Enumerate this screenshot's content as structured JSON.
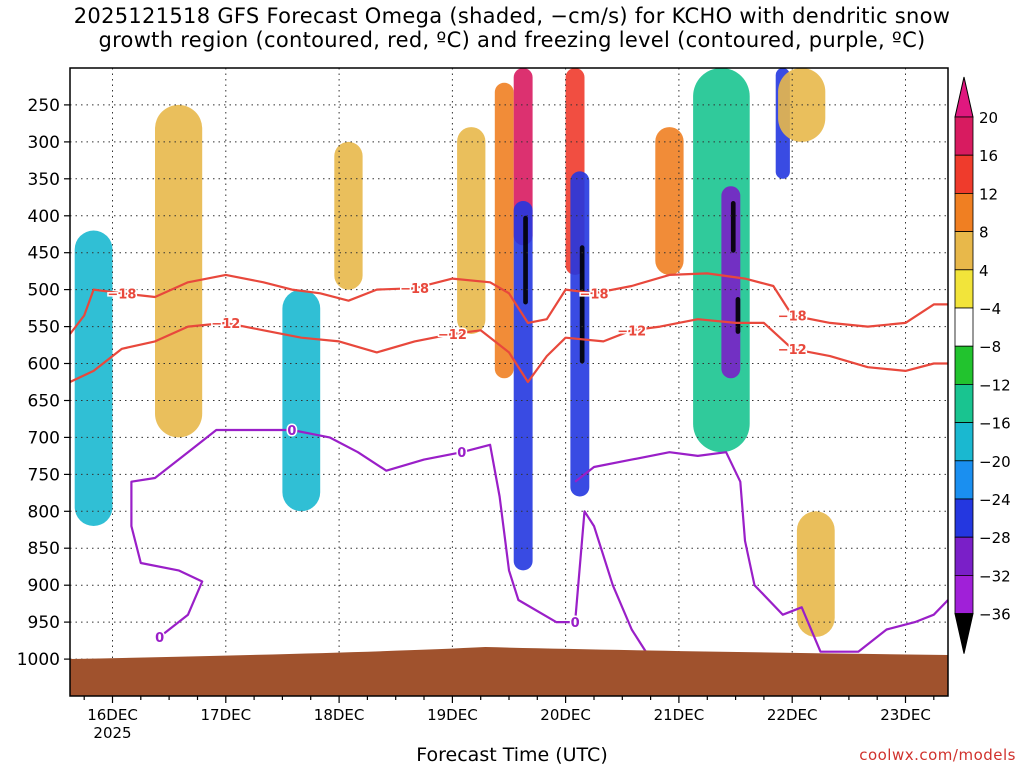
{
  "title_line1": "2025121518 GFS Forecast Omega (shaded, −cm/s) for KCHO with dendritic snow",
  "title_line2": "growth region (contoured, red, ºC) and freezing level (contoured, purple, ºC)",
  "xlabel": "Forecast Time (UTC)",
  "credit": "coolwx.com/models",
  "chart_data": {
    "type": "heatmap",
    "y_axis": {
      "label": "",
      "ticks": [
        250,
        300,
        350,
        400,
        450,
        500,
        550,
        600,
        650,
        700,
        750,
        800,
        850,
        900,
        950,
        1000
      ],
      "range": [
        1050,
        200
      ],
      "unit": "hPa"
    },
    "x_axis": {
      "label": "Forecast Time (UTC)",
      "range_hours": [
        -3,
        183
      ],
      "ticks": [
        {
          "hour": 6,
          "label": "16DEC",
          "sublabel": "2025"
        },
        {
          "hour": 30,
          "label": "17DEC",
          "sublabel": ""
        },
        {
          "hour": 54,
          "label": "18DEC",
          "sublabel": ""
        },
        {
          "hour": 78,
          "label": "19DEC",
          "sublabel": ""
        },
        {
          "hour": 102,
          "label": "20DEC",
          "sublabel": ""
        },
        {
          "hour": 126,
          "label": "21DEC",
          "sublabel": ""
        },
        {
          "hour": 150,
          "label": "22DEC",
          "sublabel": ""
        },
        {
          "hour": 174,
          "label": "23DEC",
          "sublabel": ""
        }
      ]
    },
    "grid": true,
    "colorbar": {
      "placement": "right",
      "levels": [
        {
          "label": "20",
          "color": "#d81b60"
        },
        {
          "label": "16",
          "color": "#ef3b2c"
        },
        {
          "label": "12",
          "color": "#f07f22"
        },
        {
          "label": "8",
          "color": "#e8b84a"
        },
        {
          "label": "4",
          "color": "#f2e43a"
        },
        {
          "label": "−4",
          "color": "#ffffff"
        },
        {
          "label": "−8",
          "color": "#22c32e"
        },
        {
          "label": "−12",
          "color": "#19c490"
        },
        {
          "label": "−16",
          "color": "#1ab8d0"
        },
        {
          "label": "−20",
          "color": "#1a8ff0"
        },
        {
          "label": "−24",
          "color": "#2437e0"
        },
        {
          "label": "−28",
          "color": "#7a1fc8"
        },
        {
          "label": "−32",
          "color": "#a020d8"
        },
        {
          "label": "−36",
          "color": "#aaaaaa"
        }
      ],
      "below_min_color": "#000000",
      "above_max_color": "#e0187f"
    },
    "omega_features": [
      {
        "hour": 2,
        "p_top": 420,
        "p_bot": 820,
        "value": -16,
        "width_h": 8
      },
      {
        "hour": 20,
        "p_top": 250,
        "p_bot": 700,
        "value": 8,
        "width_h": 10
      },
      {
        "hour": 46,
        "p_top": 500,
        "p_bot": 800,
        "value": -16,
        "width_h": 8
      },
      {
        "hour": 56,
        "p_top": 300,
        "p_bot": 500,
        "value": 8,
        "width_h": 6
      },
      {
        "hour": 82,
        "p_top": 280,
        "p_bot": 560,
        "value": 8,
        "width_h": 6
      },
      {
        "hour": 89,
        "p_top": 220,
        "p_bot": 620,
        "value": 12,
        "width_h": 4
      },
      {
        "hour": 93,
        "p_top": 200,
        "p_bot": 440,
        "value": 20,
        "width_h": 4
      },
      {
        "hour": 93,
        "p_top": 380,
        "p_bot": 880,
        "value": -24,
        "width_h": 4
      },
      {
        "hour": 93.5,
        "p_top": 400,
        "p_bot": 520,
        "value": -40,
        "width_h": 1
      },
      {
        "hour": 104,
        "p_top": 200,
        "p_bot": 480,
        "value": 16,
        "width_h": 4
      },
      {
        "hour": 105,
        "p_top": 340,
        "p_bot": 780,
        "value": -24,
        "width_h": 4
      },
      {
        "hour": 105.5,
        "p_top": 440,
        "p_bot": 600,
        "value": -40,
        "width_h": 1
      },
      {
        "hour": 124,
        "p_top": 280,
        "p_bot": 480,
        "value": 12,
        "width_h": 6
      },
      {
        "hour": 135,
        "p_top": 200,
        "p_bot": 720,
        "value": -12,
        "width_h": 12
      },
      {
        "hour": 137,
        "p_top": 360,
        "p_bot": 620,
        "value": -28,
        "width_h": 4
      },
      {
        "hour": 137.5,
        "p_top": 380,
        "p_bot": 450,
        "value": -40,
        "width_h": 1
      },
      {
        "hour": 138.5,
        "p_top": 510,
        "p_bot": 560,
        "value": -40,
        "width_h": 1
      },
      {
        "hour": 148,
        "p_top": 200,
        "p_bot": 350,
        "value": -24,
        "width_h": 3
      },
      {
        "hour": 152,
        "p_top": 200,
        "p_bot": 300,
        "value": 8,
        "width_h": 10
      },
      {
        "hour": 155,
        "p_top": 800,
        "p_bot": 970,
        "value": 8,
        "width_h": 8
      }
    ],
    "contours": [
      {
        "name": "-18",
        "color": "#e8483c",
        "label_hours": [
          6,
          69,
          110,
          150
        ],
        "points": [
          [
            -3,
            560
          ],
          [
            0,
            535
          ],
          [
            2,
            500
          ],
          [
            8,
            505
          ],
          [
            15,
            510
          ],
          [
            22,
            490
          ],
          [
            30,
            480
          ],
          [
            38,
            490
          ],
          [
            44,
            500
          ],
          [
            50,
            505
          ],
          [
            56,
            515
          ],
          [
            62,
            500
          ],
          [
            70,
            498
          ],
          [
            78,
            485
          ],
          [
            86,
            490
          ],
          [
            90,
            505
          ],
          [
            94,
            545
          ],
          [
            98,
            540
          ],
          [
            102,
            500
          ],
          [
            108,
            505
          ],
          [
            116,
            495
          ],
          [
            124,
            480
          ],
          [
            132,
            478
          ],
          [
            140,
            485
          ],
          [
            146,
            495
          ],
          [
            150,
            535
          ],
          [
            158,
            545
          ],
          [
            166,
            550
          ],
          [
            174,
            545
          ],
          [
            180,
            520
          ],
          [
            183,
            520
          ]
        ]
      },
      {
        "name": "-12",
        "color": "#e8483c",
        "label_hours": [
          30,
          80,
          117,
          148
        ],
        "points": [
          [
            -3,
            625
          ],
          [
            2,
            610
          ],
          [
            8,
            580
          ],
          [
            15,
            570
          ],
          [
            22,
            550
          ],
          [
            30,
            545
          ],
          [
            38,
            555
          ],
          [
            46,
            565
          ],
          [
            54,
            570
          ],
          [
            62,
            585
          ],
          [
            70,
            570
          ],
          [
            78,
            560
          ],
          [
            84,
            555
          ],
          [
            90,
            585
          ],
          [
            94,
            625
          ],
          [
            98,
            590
          ],
          [
            102,
            565
          ],
          [
            110,
            570
          ],
          [
            116,
            555
          ],
          [
            122,
            550
          ],
          [
            130,
            540
          ],
          [
            138,
            545
          ],
          [
            144,
            545
          ],
          [
            150,
            580
          ],
          [
            158,
            590
          ],
          [
            166,
            605
          ],
          [
            174,
            610
          ],
          [
            180,
            600
          ],
          [
            183,
            600
          ]
        ]
      },
      {
        "name": "0",
        "color": "#9a1fc8",
        "label_hours": [
          44,
          83,
          104,
          138,
          17
        ],
        "points": [
          [
            16,
            970
          ],
          [
            22,
            940
          ],
          [
            25,
            895
          ],
          [
            20,
            880
          ],
          [
            12,
            870
          ],
          [
            10,
            820
          ],
          [
            10,
            760
          ],
          [
            15,
            755
          ],
          [
            22,
            720
          ],
          [
            28,
            690
          ],
          [
            36,
            690
          ],
          [
            44,
            690
          ],
          [
            52,
            700
          ],
          [
            58,
            720
          ],
          [
            64,
            745
          ],
          [
            72,
            730
          ],
          [
            80,
            720
          ],
          [
            86,
            710
          ],
          [
            88,
            780
          ],
          [
            90,
            880
          ],
          [
            92,
            920
          ],
          [
            100,
            950
          ],
          [
            104,
            950
          ],
          [
            106,
            800
          ],
          [
            108,
            820
          ],
          [
            112,
            900
          ],
          [
            116,
            960
          ],
          [
            120,
            1000
          ]
        ]
      },
      {
        "name": "0b",
        "color": "#9a1fc8",
        "label_hours": [],
        "points": [
          [
            104,
            760
          ],
          [
            108,
            740
          ],
          [
            116,
            730
          ],
          [
            124,
            720
          ],
          [
            130,
            725
          ],
          [
            136,
            720
          ],
          [
            139,
            760
          ],
          [
            140,
            840
          ],
          [
            142,
            900
          ],
          [
            148,
            940
          ],
          [
            152,
            930
          ],
          [
            156,
            990
          ],
          [
            164,
            990
          ],
          [
            170,
            960
          ],
          [
            176,
            950
          ],
          [
            180,
            940
          ],
          [
            183,
            920
          ]
        ]
      }
    ],
    "terrain_hpa": 1000,
    "terrain_color": "#a0522d"
  }
}
